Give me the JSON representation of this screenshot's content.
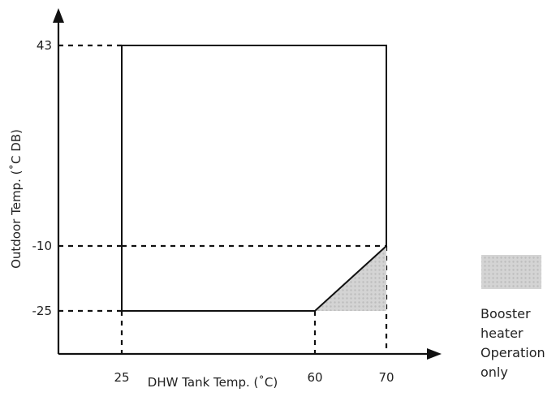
{
  "chart_data": {
    "type": "area",
    "xlabel": "DHW Tank Temp. (˚C)",
    "ylabel": "Outdoor Temp. (˚C DB)",
    "x_ticks": [
      25,
      60,
      70
    ],
    "y_ticks": [
      43,
      -10,
      -25
    ],
    "operating_range": [
      [
        25,
        43
      ],
      [
        70,
        43
      ],
      [
        70,
        -10
      ],
      [
        60,
        -25
      ],
      [
        25,
        -25
      ]
    ],
    "booster_region": [
      [
        60,
        -25
      ],
      [
        70,
        -10
      ],
      [
        70,
        -25
      ]
    ],
    "legend": {
      "label_lines": [
        "Booster",
        "heater",
        "Operation",
        "only"
      ],
      "placement": "right"
    },
    "colors": {
      "axis": "#111111",
      "outline": "#111111",
      "booster_fill": "#d4d4d4",
      "booster_dots": "#bdbdbd"
    }
  }
}
